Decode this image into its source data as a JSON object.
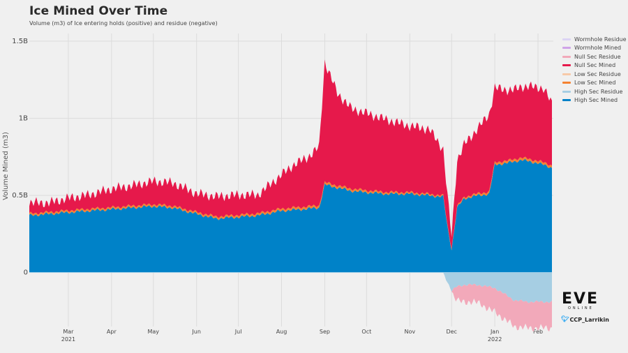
{
  "title": "Ice Mined Over Time",
  "subtitle": "Volume (m3) of Ice entering holds (positive) and residue (negative)",
  "branding": {
    "logo": "EVE",
    "logo_sub": "ONLINE",
    "twitter_handle": "CCP_Larrikin",
    "twitter_icon": "twitter-bird-icon"
  },
  "chart_data": {
    "type": "area",
    "ylabel": "Volume Mined (m3)",
    "yticks": [
      {
        "value": 0,
        "label": "0"
      },
      {
        "value": 0.5,
        "label": "0.5B"
      },
      {
        "value": 1.0,
        "label": "1B"
      },
      {
        "value": 1.5,
        "label": "1.5B"
      }
    ],
    "ylim": [
      -0.35,
      1.55
    ],
    "y_unit": "billions of m3",
    "xlim": [
      "2021-02-01",
      "2022-02-12"
    ],
    "xticks": [
      {
        "date": "2021-03-01",
        "label": "Mar",
        "year": "2021"
      },
      {
        "date": "2021-04-01",
        "label": "Apr",
        "year": ""
      },
      {
        "date": "2021-05-01",
        "label": "May",
        "year": ""
      },
      {
        "date": "2021-06-01",
        "label": "Jun",
        "year": ""
      },
      {
        "date": "2021-07-01",
        "label": "Jul",
        "year": ""
      },
      {
        "date": "2021-08-01",
        "label": "Aug",
        "year": ""
      },
      {
        "date": "2021-09-01",
        "label": "Sep",
        "year": ""
      },
      {
        "date": "2021-10-01",
        "label": "Oct",
        "year": ""
      },
      {
        "date": "2021-11-01",
        "label": "Nov",
        "year": ""
      },
      {
        "date": "2021-12-01",
        "label": "Dec",
        "year": ""
      },
      {
        "date": "2022-01-01",
        "label": "Jan",
        "year": "2022"
      },
      {
        "date": "2022-02-01",
        "label": "Feb",
        "year": ""
      }
    ],
    "grid": true,
    "legend_position": "top-right",
    "series": [
      {
        "name": "Wormhole Residue",
        "color": "#dcd4f4",
        "points": []
      },
      {
        "name": "Wormhole Mined",
        "color": "#cfa3e8",
        "points": []
      },
      {
        "name": "Null Sec Residue",
        "color": "#f2a9ba",
        "points": [
          [
            "2021-12-01",
            0
          ],
          [
            "2021-12-03",
            -0.06
          ],
          [
            "2021-12-06",
            -0.1
          ],
          [
            "2021-12-10",
            -0.11
          ],
          [
            "2021-12-15",
            -0.11
          ],
          [
            "2021-12-22",
            -0.12
          ],
          [
            "2021-12-29",
            -0.15
          ],
          [
            "2022-01-05",
            -0.16
          ],
          [
            "2022-01-15",
            -0.17
          ],
          [
            "2022-01-25",
            -0.17
          ],
          [
            "2022-02-05",
            -0.17
          ],
          [
            "2022-02-11",
            -0.17
          ]
        ]
      },
      {
        "name": "Null Sec Mined",
        "color": "#e6194b",
        "points": [
          [
            "2021-02-01",
            0.07
          ],
          [
            "2021-02-15",
            0.06
          ],
          [
            "2021-03-01",
            0.08
          ],
          [
            "2021-03-15",
            0.09
          ],
          [
            "2021-04-01",
            0.12
          ],
          [
            "2021-04-15",
            0.13
          ],
          [
            "2021-05-01",
            0.15
          ],
          [
            "2021-05-15",
            0.15
          ],
          [
            "2021-06-01",
            0.12
          ],
          [
            "2021-06-15",
            0.13
          ],
          [
            "2021-07-01",
            0.13
          ],
          [
            "2021-07-15",
            0.12
          ],
          [
            "2021-08-01",
            0.22
          ],
          [
            "2021-08-10",
            0.28
          ],
          [
            "2021-08-20",
            0.32
          ],
          [
            "2021-08-28",
            0.38
          ],
          [
            "2021-09-01",
            0.78
          ],
          [
            "2021-09-10",
            0.6
          ],
          [
            "2021-09-20",
            0.52
          ],
          [
            "2021-10-01",
            0.5
          ],
          [
            "2021-10-15",
            0.47
          ],
          [
            "2021-11-01",
            0.43
          ],
          [
            "2021-11-15",
            0.42
          ],
          [
            "2021-11-25",
            0.3
          ],
          [
            "2021-12-01",
            0.08
          ],
          [
            "2021-12-05",
            0.3
          ],
          [
            "2021-12-15",
            0.38
          ],
          [
            "2021-12-28",
            0.5
          ],
          [
            "2022-01-05",
            0.47
          ],
          [
            "2022-01-15",
            0.45
          ],
          [
            "2022-01-25",
            0.47
          ],
          [
            "2022-02-05",
            0.48
          ],
          [
            "2022-02-11",
            0.4
          ]
        ]
      },
      {
        "name": "Low Sec Residue",
        "color": "#f7c9a8",
        "points": []
      },
      {
        "name": "Low Sec Mined",
        "color": "#f58231",
        "points": [
          [
            "2021-02-01",
            0.012
          ],
          [
            "2021-06-01",
            0.012
          ],
          [
            "2021-09-01",
            0.015
          ],
          [
            "2021-12-01",
            0.008
          ],
          [
            "2022-01-01",
            0.015
          ],
          [
            "2022-02-11",
            0.015
          ]
        ]
      },
      {
        "name": "High Sec Residue",
        "color": "#a6cee3",
        "points": [
          [
            "2021-11-25",
            0
          ],
          [
            "2021-12-01",
            -0.12
          ],
          [
            "2021-12-05",
            -0.09
          ],
          [
            "2021-12-10",
            -0.08
          ],
          [
            "2021-12-20",
            -0.08
          ],
          [
            "2022-01-01",
            -0.1
          ],
          [
            "2022-01-15",
            -0.18
          ],
          [
            "2022-01-25",
            -0.19
          ],
          [
            "2022-02-05",
            -0.19
          ],
          [
            "2022-02-11",
            -0.19
          ]
        ]
      },
      {
        "name": "High Sec Mined",
        "color": "#0082c8",
        "points": [
          [
            "2021-02-01",
            0.37
          ],
          [
            "2021-02-15",
            0.38
          ],
          [
            "2021-03-01",
            0.39
          ],
          [
            "2021-03-15",
            0.4
          ],
          [
            "2021-04-01",
            0.41
          ],
          [
            "2021-04-15",
            0.42
          ],
          [
            "2021-05-01",
            0.43
          ],
          [
            "2021-05-15",
            0.42
          ],
          [
            "2021-06-01",
            0.38
          ],
          [
            "2021-06-15",
            0.35
          ],
          [
            "2021-07-01",
            0.36
          ],
          [
            "2021-07-15",
            0.37
          ],
          [
            "2021-08-01",
            0.4
          ],
          [
            "2021-08-15",
            0.41
          ],
          [
            "2021-08-28",
            0.42
          ],
          [
            "2021-09-01",
            0.57
          ],
          [
            "2021-09-10",
            0.55
          ],
          [
            "2021-09-20",
            0.53
          ],
          [
            "2021-10-01",
            0.52
          ],
          [
            "2021-10-15",
            0.51
          ],
          [
            "2021-11-01",
            0.51
          ],
          [
            "2021-11-15",
            0.5
          ],
          [
            "2021-11-25",
            0.49
          ],
          [
            "2021-11-28",
            0.3
          ],
          [
            "2021-12-01",
            0.15
          ],
          [
            "2021-12-05",
            0.42
          ],
          [
            "2021-12-10",
            0.48
          ],
          [
            "2021-12-20",
            0.5
          ],
          [
            "2021-12-28",
            0.51
          ],
          [
            "2022-01-01",
            0.7
          ],
          [
            "2022-01-10",
            0.71
          ],
          [
            "2022-01-20",
            0.73
          ],
          [
            "2022-02-01",
            0.71
          ],
          [
            "2022-02-11",
            0.68
          ]
        ]
      }
    ]
  }
}
